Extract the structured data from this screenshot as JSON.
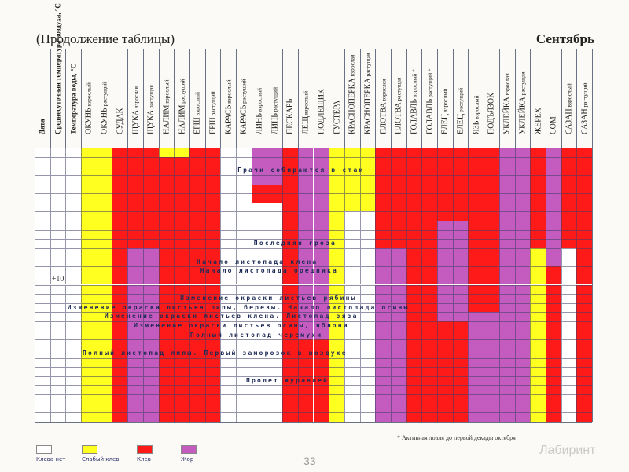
{
  "header": {
    "title": "(Продолжение таблицы)",
    "month": "Сентябрь"
  },
  "colors": {
    "none": "#ffffff",
    "weak": "#ffff20",
    "bite": "#ff1a1a",
    "feeding": "#c45cc0"
  },
  "columns": [
    {
      "name": "Дата",
      "sub": ""
    },
    {
      "name": "Среднесуточная температура воздуха, °С",
      "sub": ""
    },
    {
      "name": "Температура воды, °С",
      "sub": ""
    },
    {
      "name": "ОКУНЬ",
      "sub": "взрослый"
    },
    {
      "name": "ОКУНЬ",
      "sub": "растущий"
    },
    {
      "name": "СУДАК",
      "sub": ""
    },
    {
      "name": "ЩУКА",
      "sub": "взрослая"
    },
    {
      "name": "ЩУКА",
      "sub": "растущая"
    },
    {
      "name": "НАЛИМ",
      "sub": "взрослый"
    },
    {
      "name": "НАЛИМ",
      "sub": "растущий"
    },
    {
      "name": "ЕРШ",
      "sub": "взрослый"
    },
    {
      "name": "ЕРШ",
      "sub": "растущий"
    },
    {
      "name": "КАРАСЬ",
      "sub": "взрослый"
    },
    {
      "name": "КАРАСЬ",
      "sub": "растущий"
    },
    {
      "name": "ЛИНЬ",
      "sub": "взрослый"
    },
    {
      "name": "ЛИНЬ",
      "sub": "растущий"
    },
    {
      "name": "ПЕСКАРЬ",
      "sub": ""
    },
    {
      "name": "ЛЕЩ",
      "sub": "взрослый"
    },
    {
      "name": "ПОДЛЕЩИК",
      "sub": ""
    },
    {
      "name": "ГУСТЕРА",
      "sub": ""
    },
    {
      "name": "КРАСНОПЕРКА",
      "sub": "взрослая"
    },
    {
      "name": "КРАСНОПЕРКА",
      "sub": "растущая"
    },
    {
      "name": "ПЛОТВА",
      "sub": "взрослая"
    },
    {
      "name": "ПЛОТВА",
      "sub": "растущая"
    },
    {
      "name": "ГОЛАВЛЬ",
      "sub": "взрослый *"
    },
    {
      "name": "ГОЛАВЛЬ",
      "sub": "растущий *"
    },
    {
      "name": "ЕЛЕЦ",
      "sub": "взрослый"
    },
    {
      "name": "ЕЛЕЦ",
      "sub": "растущий"
    },
    {
      "name": "ЯЗЬ",
      "sub": "взрослый"
    },
    {
      "name": "ПОДЪЯЗОК",
      "sub": ""
    },
    {
      "name": "УКЛЕЙКА",
      "sub": "взрослая"
    },
    {
      "name": "УКЛЕЙКА",
      "sub": "растущая"
    },
    {
      "name": "ЖЕРЕХ",
      "sub": ""
    },
    {
      "name": "СОМ",
      "sub": ""
    },
    {
      "name": "САЗАН",
      "sub": "взрослый"
    },
    {
      "name": "САЗАН",
      "sub": "растущий"
    }
  ],
  "rows_count": 30,
  "air_temperature_marks": [
    {
      "row": 14,
      "text": "+10"
    }
  ],
  "activity": {
    "legend_codes": {
      "n": "Клева нет",
      "w": "Слабый клев",
      "b": "Клев",
      "f": "Жор"
    },
    "fish_columns": [
      {
        "segments": [
          [
            "w",
            0,
            30
          ]
        ]
      },
      {
        "segments": [
          [
            "w",
            0,
            30
          ]
        ]
      },
      {
        "segments": [
          [
            "b",
            0,
            30
          ]
        ]
      },
      {
        "segments": [
          [
            "b",
            0,
            11
          ],
          [
            "f",
            11,
            30
          ]
        ]
      },
      {
        "segments": [
          [
            "b",
            0,
            11
          ],
          [
            "f",
            11,
            30
          ]
        ]
      },
      {
        "segments": [
          [
            "w",
            0,
            1
          ],
          [
            "b",
            1,
            30
          ]
        ]
      },
      {
        "segments": [
          [
            "w",
            0,
            1
          ],
          [
            "b",
            1,
            30
          ]
        ]
      },
      {
        "segments": [
          [
            "b",
            0,
            30
          ]
        ]
      },
      {
        "segments": [
          [
            "b",
            0,
            30
          ]
        ]
      },
      {
        "segments": [
          [
            "n",
            0,
            30
          ]
        ]
      },
      {
        "segments": [
          [
            "n",
            0,
            30
          ]
        ]
      },
      {
        "segments": [
          [
            "f",
            0,
            4
          ],
          [
            "b",
            4,
            6
          ],
          [
            "n",
            6,
            30
          ]
        ]
      },
      {
        "segments": [
          [
            "f",
            0,
            4
          ],
          [
            "b",
            4,
            6
          ],
          [
            "n",
            6,
            30
          ]
        ]
      },
      {
        "segments": [
          [
            "b",
            0,
            30
          ]
        ]
      },
      {
        "segments": [
          [
            "f",
            0,
            21
          ],
          [
            "b",
            21,
            30
          ]
        ]
      },
      {
        "segments": [
          [
            "f",
            0,
            21
          ],
          [
            "b",
            21,
            30
          ]
        ]
      },
      {
        "segments": [
          [
            "w",
            0,
            30
          ]
        ]
      },
      {
        "segments": [
          [
            "w",
            0,
            7
          ],
          [
            "n",
            7,
            30
          ]
        ]
      },
      {
        "segments": [
          [
            "w",
            0,
            7
          ],
          [
            "n",
            7,
            30
          ]
        ]
      },
      {
        "segments": [
          [
            "b",
            0,
            11
          ],
          [
            "f",
            11,
            30
          ]
        ]
      },
      {
        "segments": [
          [
            "b",
            0,
            11
          ],
          [
            "f",
            11,
            30
          ]
        ]
      },
      {
        "segments": [
          [
            "b",
            0,
            30
          ]
        ]
      },
      {
        "segments": [
          [
            "b",
            0,
            30
          ]
        ]
      },
      {
        "segments": [
          [
            "b",
            0,
            8
          ],
          [
            "f",
            8,
            19
          ],
          [
            "b",
            19,
            30
          ]
        ]
      },
      {
        "segments": [
          [
            "b",
            0,
            8
          ],
          [
            "f",
            8,
            19
          ],
          [
            "b",
            19,
            30
          ]
        ]
      },
      {
        "segments": [
          [
            "b",
            0,
            18
          ],
          [
            "f",
            18,
            30
          ]
        ]
      },
      {
        "segments": [
          [
            "b",
            0,
            18
          ],
          [
            "f",
            18,
            30
          ]
        ]
      },
      {
        "segments": [
          [
            "f",
            0,
            30
          ]
        ]
      },
      {
        "segments": [
          [
            "f",
            0,
            30
          ]
        ]
      },
      {
        "segments": [
          [
            "b",
            0,
            11
          ],
          [
            "w",
            11,
            30
          ]
        ]
      },
      {
        "segments": [
          [
            "f",
            0,
            13
          ],
          [
            "b",
            13,
            30
          ]
        ]
      },
      {
        "segments": [
          [
            "b",
            0,
            11
          ],
          [
            "n",
            11,
            30
          ]
        ]
      },
      {
        "segments": [
          [
            "b",
            0,
            30
          ]
        ]
      }
    ]
  },
  "phenology_notes": [
    {
      "row": 2,
      "text": "Грачи собираются в стаи"
    },
    {
      "row": 10,
      "text": "Последняя гроза"
    },
    {
      "row": 12,
      "text": "Начало листопада клена"
    },
    {
      "row": 13,
      "text": "Начало листопада орешника"
    },
    {
      "row": 16,
      "text": "Изменение окраски листьев рябины"
    },
    {
      "row": 17,
      "text": "Изменение окраски листьев липы, березы. Начало листопада осины"
    },
    {
      "row": 18,
      "text": "Изменение окраски листьев клена. Листопад вяза"
    },
    {
      "row": 19,
      "text": "Изменение окраски листьев осины, яблони"
    },
    {
      "row": 20,
      "text": "Полный листопад черемухи"
    },
    {
      "row": 22,
      "text": "Полный листопад липы. Первый заморозок в воздухе"
    },
    {
      "row": 25,
      "text": "Пролет журавлей"
    }
  ],
  "legend": [
    {
      "code": "n",
      "label": "Клева нет"
    },
    {
      "code": "w",
      "label": "Слабый клев"
    },
    {
      "code": "b",
      "label": "Клев"
    },
    {
      "code": "f",
      "label": "Жор"
    }
  ],
  "footnote": "*  Активная ловля до первой декады октября",
  "page_number": "33",
  "watermark": "Лабиринт"
}
